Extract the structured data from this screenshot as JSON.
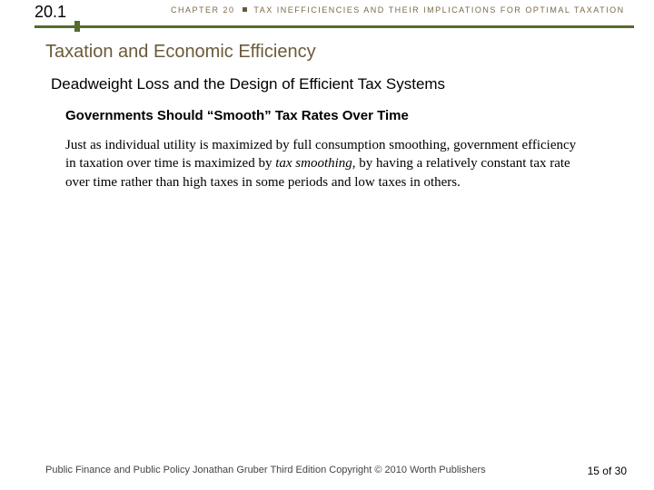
{
  "header": {
    "section_number": "20.1",
    "chapter_pre": "CHAPTER 20",
    "chapter_post": "TAX INEFFICIENCIES AND THEIR IMPLICATIONS FOR OPTIMAL TAXATION"
  },
  "titles": {
    "section": "Taxation and Economic Efficiency",
    "sub": "Deadweight Loss and the Design of Efficient Tax Systems",
    "subsub": "Governments Should “Smooth” Tax Rates Over Time"
  },
  "body": {
    "p1a": "Just as individual utility is maximized by full consumption smoothing, government efficiency in taxation over time is maximized by ",
    "p1_italic": "tax smoothing",
    "p1b": ", by having a relatively constant tax rate over time rather than high taxes in some periods and low taxes in others."
  },
  "footer": {
    "left": "Public Finance and Public Policy   Jonathan Gruber   Third Edition   Copyright © 2010  Worth Publishers",
    "right": "15 of 30"
  }
}
